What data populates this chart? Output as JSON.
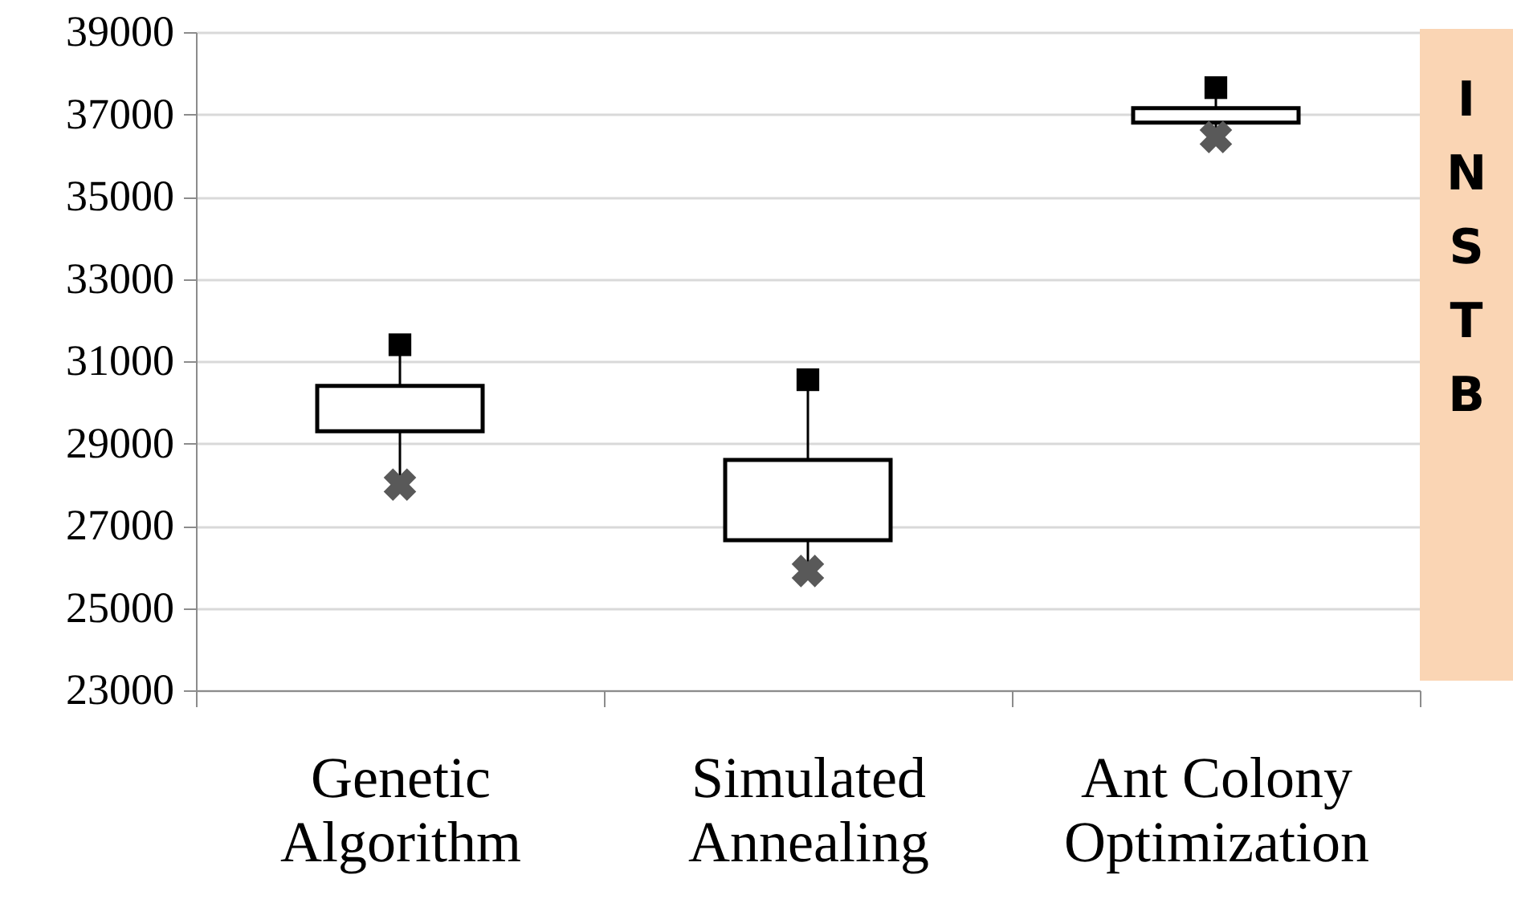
{
  "chart_data": {
    "type": "candlestick",
    "categories": [
      "Genetic Algorithm",
      "Simulated Annealing",
      "Ant Colony Optimization"
    ],
    "ohlc": [
      [
        29300,
        31400,
        28000,
        30400
      ],
      [
        26650,
        30550,
        25900,
        28600
      ],
      [
        36800,
        37650,
        36450,
        37150
      ]
    ],
    "ylim": [
      23000,
      39000
    ],
    "yticks": [
      23000,
      25000,
      27000,
      29000,
      31000,
      33000,
      35000,
      37000,
      39000
    ],
    "series": [
      {
        "type": "scatter",
        "x": [
          "Genetic Algorithm",
          "Simulated Annealing",
          "Ant Colony Optimization"
        ],
        "values": [
          31400,
          30550,
          37650
        ],
        "marker": "square",
        "color": "#000000"
      },
      {
        "type": "scatter",
        "x": [
          "Genetic Algorithm",
          "Simulated Annealing",
          "Ant Colony Optimization"
        ],
        "values": [
          28000,
          25900,
          36450
        ],
        "marker": "cross",
        "color": "#595959"
      }
    ],
    "grid": "y",
    "annotations": [
      "INSTB"
    ]
  }
}
